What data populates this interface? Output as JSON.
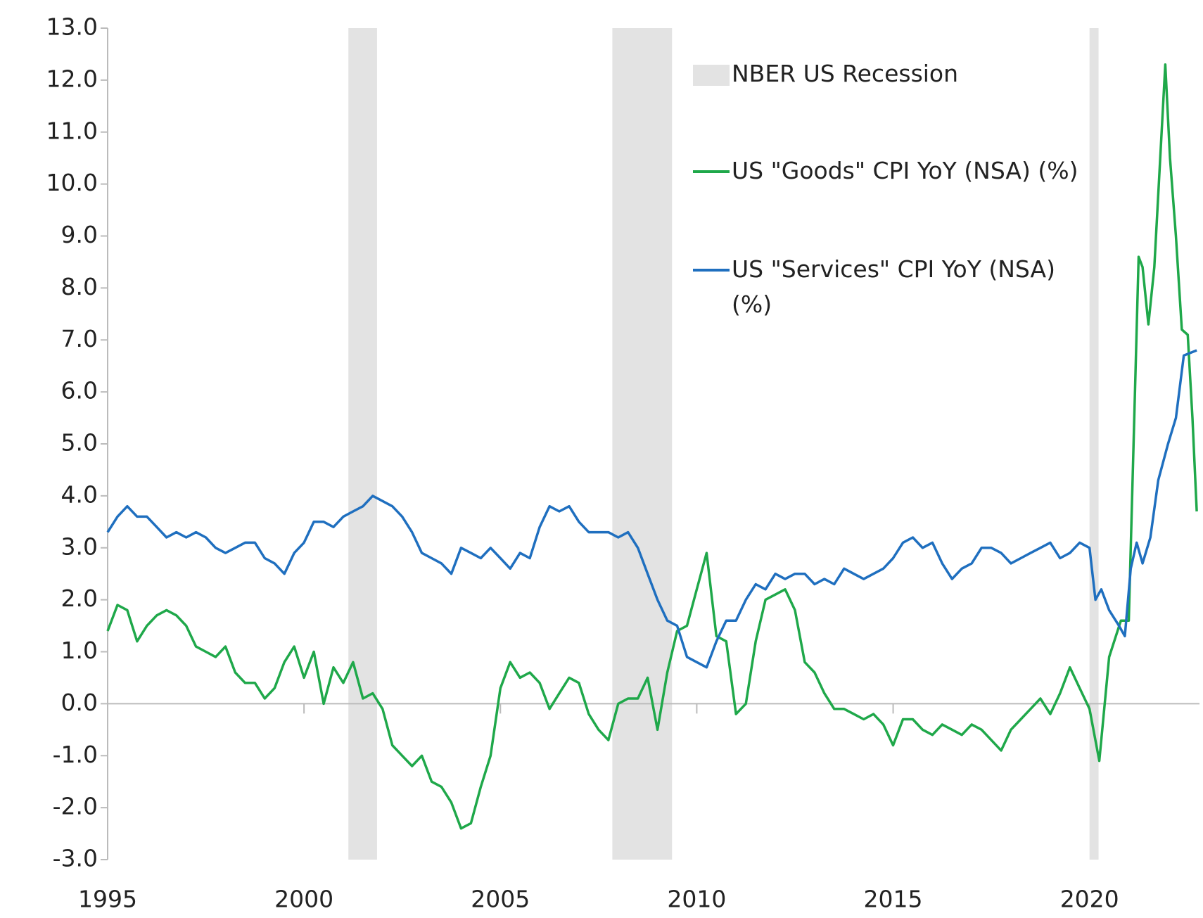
{
  "chart_data": {
    "type": "line",
    "recessions": {
      "name": "NBER US Recession",
      "color": "#e3e3e3",
      "spans": [
        [
          2001.13,
          2001.86
        ],
        [
          2007.85,
          2009.37
        ],
        [
          2020.0,
          2020.23
        ]
      ]
    },
    "series": [
      {
        "name": "US \"Goods\" CPI YoY (NSA) (%)",
        "color": "#1fa84a",
        "x": [
          1995.0,
          1995.25,
          1995.5,
          1995.75,
          1996.0,
          1996.25,
          1996.5,
          1996.75,
          1997.0,
          1997.25,
          1997.5,
          1997.75,
          1998.0,
          1998.25,
          1998.5,
          1998.75,
          1999.0,
          1999.25,
          1999.5,
          1999.75,
          2000.0,
          2000.25,
          2000.5,
          2000.75,
          2001.0,
          2001.25,
          2001.5,
          2001.75,
          2002.0,
          2002.25,
          2002.5,
          2002.75,
          2003.0,
          2003.25,
          2003.5,
          2003.75,
          2004.0,
          2004.25,
          2004.5,
          2004.75,
          2005.0,
          2005.25,
          2005.5,
          2005.75,
          2006.0,
          2006.25,
          2006.5,
          2006.75,
          2007.0,
          2007.25,
          2007.5,
          2007.75,
          2008.0,
          2008.25,
          2008.5,
          2008.75,
          2009.0,
          2009.25,
          2009.5,
          2009.75,
          2010.0,
          2010.25,
          2010.5,
          2010.75,
          2011.0,
          2011.25,
          2011.5,
          2011.75,
          2012.0,
          2012.25,
          2012.5,
          2012.75,
          2013.0,
          2013.25,
          2013.5,
          2013.75,
          2014.0,
          2014.25,
          2014.5,
          2014.75,
          2015.0,
          2015.25,
          2015.5,
          2015.75,
          2016.0,
          2016.25,
          2016.5,
          2016.75,
          2017.0,
          2017.25,
          2017.5,
          2017.75,
          2018.0,
          2018.25,
          2018.5,
          2018.75,
          2019.0,
          2019.25,
          2019.5,
          2019.75,
          2020.0,
          2020.25,
          2020.5,
          2020.8,
          2021.0,
          2021.25,
          2021.35,
          2021.5,
          2021.65,
          2021.8,
          2021.93,
          2022.05,
          2022.2,
          2022.35,
          2022.5,
          2022.62,
          2022.73
        ],
        "values": [
          1.4,
          1.9,
          1.8,
          1.2,
          1.5,
          1.7,
          1.8,
          1.7,
          1.5,
          1.1,
          1.0,
          0.9,
          1.1,
          0.6,
          0.4,
          0.4,
          0.1,
          0.3,
          0.8,
          1.1,
          0.5,
          1.0,
          0.0,
          0.7,
          0.4,
          0.8,
          0.1,
          0.2,
          -0.1,
          -0.8,
          -1.0,
          -1.2,
          -1.0,
          -1.5,
          -1.6,
          -1.9,
          -2.4,
          -2.3,
          -1.6,
          -1.0,
          0.3,
          0.8,
          0.5,
          0.6,
          0.4,
          -0.1,
          0.2,
          0.5,
          0.4,
          -0.2,
          -0.5,
          -0.7,
          0.0,
          0.1,
          0.1,
          0.5,
          -0.5,
          0.6,
          1.4,
          1.5,
          2.2,
          2.9,
          1.3,
          1.2,
          -0.2,
          0.0,
          1.2,
          2.0,
          2.1,
          2.2,
          1.8,
          0.8,
          0.6,
          0.2,
          -0.1,
          -0.1,
          -0.2,
          -0.3,
          -0.2,
          -0.4,
          -0.8,
          -0.3,
          -0.3,
          -0.5,
          -0.6,
          -0.4,
          -0.5,
          -0.6,
          -0.4,
          -0.5,
          -0.7,
          -0.9,
          -0.5,
          -0.3,
          -0.1,
          0.1,
          -0.2,
          0.2,
          0.7,
          0.3,
          -0.1,
          -1.1,
          0.9,
          1.6,
          1.6,
          8.6,
          8.4,
          7.3,
          8.4,
          10.5,
          12.3,
          10.5,
          9.0,
          7.2,
          7.1,
          5.5,
          3.7
        ]
      },
      {
        "name": "US \"Services\" CPI YoY (NSA) (%)",
        "color": "#1f6fbf",
        "x": [
          1995.0,
          1995.25,
          1995.5,
          1995.75,
          1996.0,
          1996.25,
          1996.5,
          1996.75,
          1997.0,
          1997.25,
          1997.5,
          1997.75,
          1998.0,
          1998.25,
          1998.5,
          1998.75,
          1999.0,
          1999.25,
          1999.5,
          1999.75,
          2000.0,
          2000.25,
          2000.5,
          2000.75,
          2001.0,
          2001.25,
          2001.5,
          2001.75,
          2002.0,
          2002.25,
          2002.5,
          2002.75,
          2003.0,
          2003.25,
          2003.5,
          2003.75,
          2004.0,
          2004.25,
          2004.5,
          2004.75,
          2005.0,
          2005.25,
          2005.5,
          2005.75,
          2006.0,
          2006.25,
          2006.5,
          2006.75,
          2007.0,
          2007.25,
          2007.5,
          2007.75,
          2008.0,
          2008.25,
          2008.5,
          2008.75,
          2009.0,
          2009.25,
          2009.5,
          2009.75,
          2010.0,
          2010.25,
          2010.5,
          2010.75,
          2011.0,
          2011.25,
          2011.5,
          2011.75,
          2012.0,
          2012.25,
          2012.5,
          2012.75,
          2013.0,
          2013.25,
          2013.5,
          2013.75,
          2014.0,
          2014.25,
          2014.5,
          2014.75,
          2015.0,
          2015.25,
          2015.5,
          2015.75,
          2016.0,
          2016.25,
          2016.5,
          2016.75,
          2017.0,
          2017.25,
          2017.5,
          2017.75,
          2018.0,
          2018.25,
          2018.5,
          2018.75,
          2019.0,
          2019.25,
          2019.5,
          2019.75,
          2020.0,
          2020.15,
          2020.3,
          2020.5,
          2020.75,
          2020.9,
          2021.05,
          2021.2,
          2021.35,
          2021.55,
          2021.75,
          2022.0,
          2022.2,
          2022.4,
          2022.73
        ],
        "values": [
          3.3,
          3.6,
          3.8,
          3.6,
          3.6,
          3.4,
          3.2,
          3.3,
          3.2,
          3.3,
          3.2,
          3.0,
          2.9,
          3.0,
          3.1,
          3.1,
          2.8,
          2.7,
          2.5,
          2.9,
          3.1,
          3.5,
          3.5,
          3.4,
          3.6,
          3.7,
          3.8,
          4.0,
          3.9,
          3.8,
          3.6,
          3.3,
          2.9,
          2.8,
          2.7,
          2.5,
          3.0,
          2.9,
          2.8,
          3.0,
          2.8,
          2.6,
          2.9,
          2.8,
          3.4,
          3.8,
          3.7,
          3.8,
          3.5,
          3.3,
          3.3,
          3.3,
          3.2,
          3.3,
          3.0,
          2.5,
          2.0,
          1.6,
          1.5,
          0.9,
          0.8,
          0.7,
          1.2,
          1.6,
          1.6,
          2.0,
          2.3,
          2.2,
          2.5,
          2.4,
          2.5,
          2.5,
          2.3,
          2.4,
          2.3,
          2.6,
          2.5,
          2.4,
          2.5,
          2.6,
          2.8,
          3.1,
          3.2,
          3.0,
          3.1,
          2.7,
          2.4,
          2.6,
          2.7,
          3.0,
          3.0,
          2.9,
          2.7,
          2.8,
          2.9,
          3.0,
          3.1,
          2.8,
          2.9,
          3.1,
          3.0,
          2.0,
          2.2,
          1.8,
          1.5,
          1.3,
          2.6,
          3.1,
          2.7,
          3.2,
          4.3,
          5.0,
          5.5,
          6.7,
          6.8
        ]
      }
    ],
    "xlim": [
      1995,
      2022.8
    ],
    "xticks": [
      1995,
      2000,
      2005,
      2010,
      2015,
      2020
    ],
    "ylim": [
      -3,
      13
    ],
    "yticks": [
      {
        "value": -3,
        "label": "-3.0"
      },
      {
        "value": -2,
        "label": "-2.0"
      },
      {
        "value": -1,
        "label": "-1.0"
      },
      {
        "value": 0,
        "label": "0.0"
      },
      {
        "value": 1,
        "label": "1.0"
      },
      {
        "value": 2,
        "label": "2.0"
      },
      {
        "value": 3,
        "label": "3.0"
      },
      {
        "value": 4,
        "label": "4.0"
      },
      {
        "value": 5,
        "label": "5.0"
      },
      {
        "value": 6,
        "label": "6.0"
      },
      {
        "value": 7,
        "label": "7.0"
      },
      {
        "value": 8,
        "label": "8.0"
      },
      {
        "value": 9,
        "label": "9.0"
      },
      {
        "value": 10,
        "label": "10.0"
      },
      {
        "value": 11,
        "label": "11.0"
      },
      {
        "value": 12,
        "label": "12.0"
      },
      {
        "value": 13,
        "label": "13.0"
      }
    ],
    "legend": "upper right",
    "grid": false
  }
}
